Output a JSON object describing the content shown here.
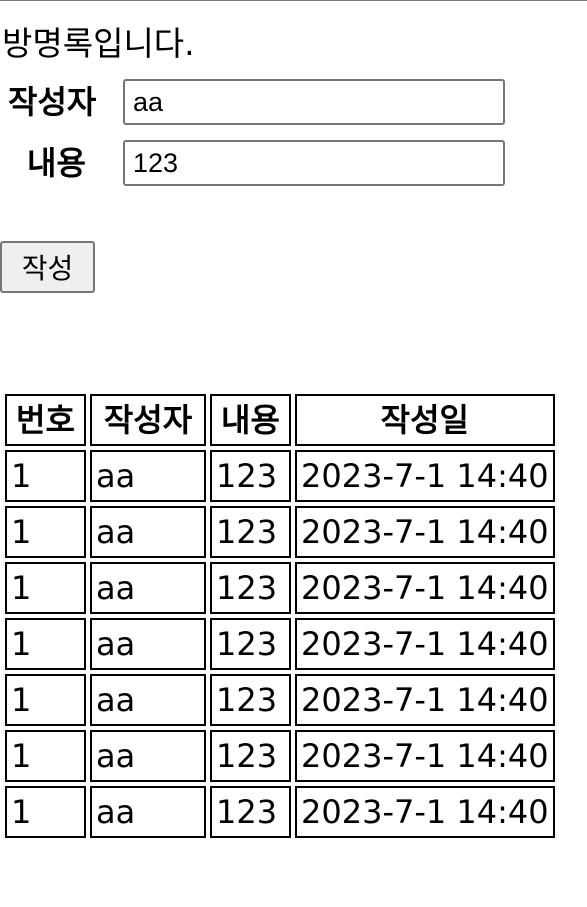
{
  "page": {
    "title": "방명록입니다."
  },
  "form": {
    "writer_label": "작성자",
    "writer_value": "aa",
    "content_label": "내용",
    "content_value": "123",
    "submit_label": "작성"
  },
  "table": {
    "headers": [
      "번호",
      "작성자",
      "내용",
      "작성일"
    ],
    "rows": [
      [
        "1",
        "aa",
        "123",
        "2023-7-1 14:40"
      ],
      [
        "1",
        "aa",
        "123",
        "2023-7-1 14:40"
      ],
      [
        "1",
        "aa",
        "123",
        "2023-7-1 14:40"
      ],
      [
        "1",
        "aa",
        "123",
        "2023-7-1 14:40"
      ],
      [
        "1",
        "aa",
        "123",
        "2023-7-1 14:40"
      ],
      [
        "1",
        "aa",
        "123",
        "2023-7-1 14:40"
      ],
      [
        "1",
        "aa",
        "123",
        "2023-7-1 14:40"
      ]
    ]
  }
}
